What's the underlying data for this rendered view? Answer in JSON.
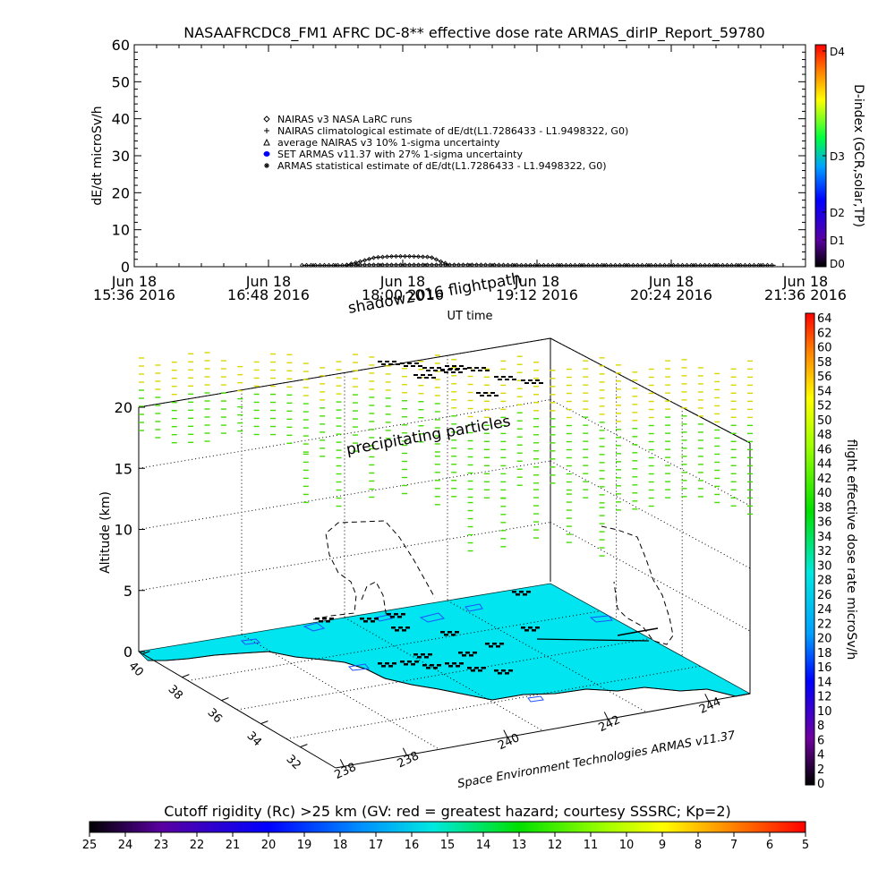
{
  "title": "NASAAFRCDC8_FM1 AFRC DC-8** effective dose rate ARMAS_dirIP_Report_59780",
  "chart_data": [
    {
      "type": "line",
      "ylabel": "dE/dt microSv/h",
      "xlabel": "UT time",
      "ylim": [
        0,
        60
      ],
      "y_ticks": [
        "0",
        "10",
        "20",
        "30",
        "40",
        "50",
        "60"
      ],
      "x_ticks": [
        {
          "line1": "Jun 18",
          "line2": "15:36 2016"
        },
        {
          "line1": "Jun 18",
          "line2": "16:48 2016"
        },
        {
          "line1": "Jun 18",
          "line2": "18:00 2016"
        },
        {
          "line1": "Jun 18",
          "line2": "19:12 2016"
        },
        {
          "line1": "Jun 18",
          "line2": "20:24 2016"
        },
        {
          "line1": "Jun 18",
          "line2": "21:36 2016"
        }
      ],
      "x_start_min": 936,
      "x_end_min": 1296,
      "legend": [
        {
          "symbol": "diamond",
          "label": "NAIRAS v3 NASA LaRC runs",
          "color": "#000000"
        },
        {
          "symbol": "plus",
          "label": "NAIRAS climatological estimate of dE/dt(L1.7286433 - L1.9498322, G0)",
          "color": "#000000"
        },
        {
          "symbol": "triangle",
          "label": "average NAIRAS v3 10% 1-sigma uncertainty",
          "color": "#000000"
        },
        {
          "symbol": "dot",
          "label": "SET ARMAS v11.37 with 27% 1-sigma uncertainty",
          "color": "#0000ff"
        },
        {
          "symbol": "asterisk",
          "label": "ARMAS statistical estimate of dE/dt(L1.7286433 - L1.9498322, G0)",
          "color": "#000000"
        }
      ],
      "series": [
        {
          "values_x_min": [
            1026,
            1050,
            1060,
            1080,
            1090,
            1100,
            1110,
            1120,
            1150,
            1200,
            1250,
            1280
          ],
          "values_y": [
            0.4,
            0.4,
            0.5,
            0.5,
            0.5,
            0.5,
            0.5,
            0.5,
            0.4,
            0.4,
            0.4,
            0.4
          ]
        },
        {
          "values_x_min": [
            1050,
            1058,
            1065,
            1075,
            1085,
            1095,
            1100,
            1105
          ],
          "values_y": [
            0.5,
            1.5,
            2.5,
            2.8,
            2.8,
            2.6,
            1.5,
            0.5
          ]
        }
      ],
      "dindex_colorbar": {
        "label": "D-index (GCR,solar,TP)",
        "ticks": [
          "D4",
          "D3",
          "D2",
          "D1",
          "D0"
        ]
      }
    },
    {
      "type": "scatter",
      "annotations": [
        "shadow2016 flightpath",
        "precipitating particles"
      ],
      "zlabel": "Altitude (km)",
      "z_ticks": [
        "0",
        "5",
        "10",
        "15",
        "20"
      ],
      "lat_ticks": [
        "40",
        "38",
        "36",
        "34",
        "32"
      ],
      "lon_ticks": [
        "238",
        "238",
        "240",
        "242",
        "244"
      ],
      "footer": "Space Environment Technologies ARMAS v11.37",
      "dose_colorbar": {
        "label": "flight effective dose rate microSv/h",
        "ticks": [
          "64",
          "62",
          "60",
          "58",
          "56",
          "54",
          "52",
          "50",
          "48",
          "46",
          "44",
          "42",
          "40",
          "38",
          "36",
          "34",
          "32",
          "30",
          "28",
          "26",
          "24",
          "22",
          "20",
          "18",
          "16",
          "14",
          "12",
          "10",
          "8",
          "6",
          "4",
          "2",
          "0"
        ]
      }
    }
  ],
  "cutoff_colorbar": {
    "title": "Cutoff rigidity (Rc) >25 km (GV: red = greatest hazard; courtesy SSSRC; Kp=2)",
    "ticks": [
      "25",
      "24",
      "23",
      "22",
      "21",
      "20",
      "19",
      "18",
      "17",
      "16",
      "15",
      "14",
      "13",
      "12",
      "11",
      "10",
      "9",
      "8",
      "7",
      "6",
      "5"
    ]
  },
  "colors": {
    "sea": "#00e5f0",
    "land": "#ffffff",
    "precip_yellow": "#d8d800",
    "precip_green": "#44dd00"
  }
}
